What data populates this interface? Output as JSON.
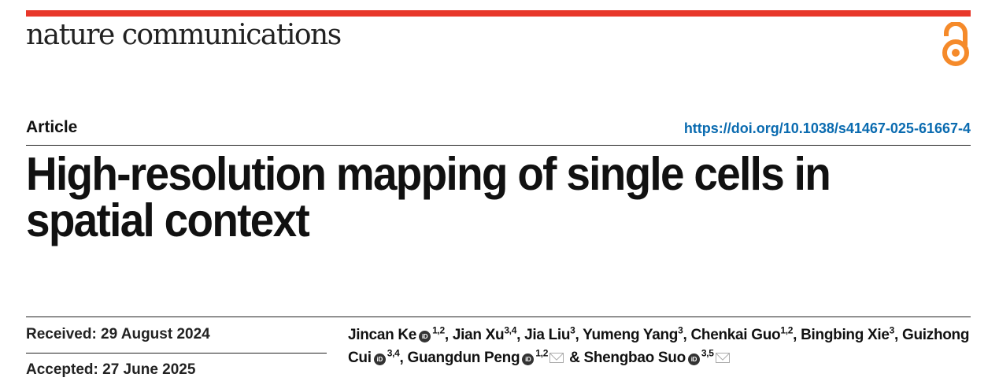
{
  "colors": {
    "brand_bar": "#e8372a",
    "open_access": "#f58a2a",
    "doi_link": "#0a6bb0"
  },
  "header": {
    "journal": "nature communications",
    "open_access_icon": "open-access-lock-icon"
  },
  "article_type": "Article",
  "doi": "https://doi.org/10.1038/s41467-025-61667-4",
  "title": "High-resolution mapping of single cells in spatial context",
  "dates": {
    "received": "Received: 29 August 2024",
    "accepted": "Accepted: 27 June 2025"
  },
  "authors": [
    {
      "name": "Jincan Ke",
      "orcid": true,
      "aff": "1,2",
      "email": false,
      "sep": ", "
    },
    {
      "name": "Jian Xu",
      "orcid": false,
      "aff": "3,4",
      "email": false,
      "sep": ", "
    },
    {
      "name": "Jia Liu",
      "orcid": false,
      "aff": "3",
      "email": false,
      "sep": ", "
    },
    {
      "name": "Yumeng Yang",
      "orcid": false,
      "aff": "3",
      "email": false,
      "sep": ", "
    },
    {
      "name": "Chenkai Guo",
      "orcid": false,
      "aff": "1,2",
      "email": false,
      "sep": ", "
    },
    {
      "name": "Bingbing Xie",
      "orcid": false,
      "aff": "3",
      "email": false,
      "sep": ", "
    },
    {
      "name": "Guizhong Cui",
      "orcid": true,
      "aff": "3,4",
      "email": false,
      "sep": ", "
    },
    {
      "name": "Guangdun Peng",
      "orcid": true,
      "aff": "1,2",
      "email": true,
      "sep": " & "
    },
    {
      "name": "Shengbao Suo",
      "orcid": true,
      "aff": "3,5",
      "email": true,
      "sep": ""
    }
  ]
}
